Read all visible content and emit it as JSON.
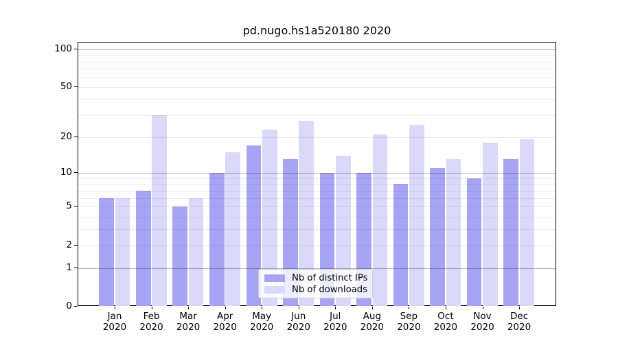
{
  "chart_data": {
    "type": "bar",
    "title": "pd.nugo.hs1a520180 2020",
    "categories": [
      "Jan",
      "Feb",
      "Mar",
      "Apr",
      "May",
      "Jun",
      "Jul",
      "Aug",
      "Sep",
      "Oct",
      "Nov",
      "Dec"
    ],
    "year_label": "2020",
    "series": [
      {
        "name": "Nb of distinct IPs",
        "color": "#a7a5f3",
        "values": [
          6,
          7,
          5,
          10,
          17,
          13,
          10,
          10,
          8,
          11,
          9,
          13
        ]
      },
      {
        "name": "Nb of downloads",
        "color": "#dad9fa",
        "values": [
          6,
          30,
          6,
          15,
          23,
          27,
          14,
          21,
          25,
          13,
          18,
          19
        ]
      }
    ],
    "yscale": "log1p",
    "ylabel": "",
    "xlabel": "",
    "ylim": [
      0,
      113
    ],
    "yticks": [
      0,
      1,
      2,
      5,
      10,
      20,
      50,
      100
    ],
    "major_gridlines": [
      1,
      10,
      100
    ],
    "minor_gridlines": [
      2,
      3,
      4,
      5,
      6,
      7,
      8,
      9,
      20,
      30,
      40,
      50,
      60,
      70,
      80,
      90
    ],
    "grid": true,
    "legend_position": "lower center"
  }
}
